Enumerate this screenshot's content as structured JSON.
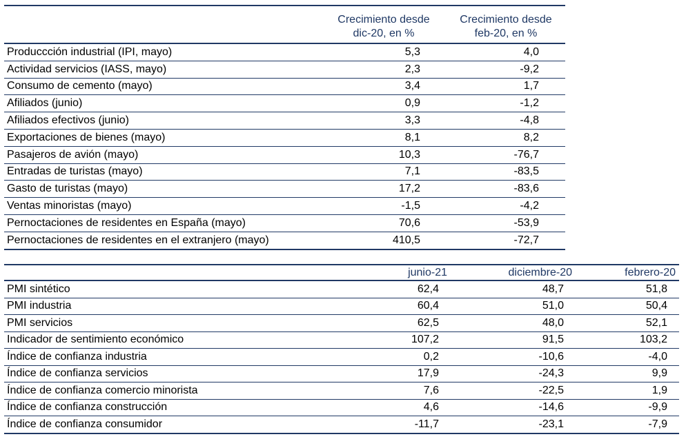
{
  "table1": {
    "headers": [
      "",
      "Crecimiento desde\ndic-20, en %",
      "Crecimiento desde\nfeb-20, en %"
    ],
    "header1_line1": "Crecimiento desde",
    "header1_line2": "dic-20, en %",
    "header2_line1": "Crecimiento desde",
    "header2_line2": "feb-20, en %",
    "rows": [
      {
        "label": "Produccción industrial (IPI, mayo)",
        "dic20": "5,3",
        "feb20": "4,0"
      },
      {
        "label": "Actividad servicios (IASS, mayo)",
        "dic20": "2,3",
        "feb20": "-9,2"
      },
      {
        "label": "Consumo de cemento (mayo)",
        "dic20": "3,4",
        "feb20": "1,7"
      },
      {
        "label": "Afiliados (junio)",
        "dic20": "0,9",
        "feb20": "-1,2"
      },
      {
        "label": "Afiliados efectivos (junio)",
        "dic20": "3,3",
        "feb20": "-4,8"
      },
      {
        "label": "Exportaciones de bienes (mayo)",
        "dic20": "8,1",
        "feb20": "8,2"
      },
      {
        "label": "Pasajeros de avión (mayo)",
        "dic20": "10,3",
        "feb20": "-76,7"
      },
      {
        "label": "Entradas de turistas (mayo)",
        "dic20": "7,1",
        "feb20": "-83,5"
      },
      {
        "label": "Gasto de turistas (mayo)",
        "dic20": "17,2",
        "feb20": "-83,6"
      },
      {
        "label": "Ventas minoristas (mayo)",
        "dic20": "-1,5",
        "feb20": "-4,2"
      },
      {
        "label": "Pernoctaciones de residentes en España (mayo)",
        "dic20": "70,6",
        "feb20": "-53,9"
      },
      {
        "label": "Pernoctaciones de residentes en el extranjero (mayo)",
        "dic20": "410,5",
        "feb20": "-72,7"
      }
    ]
  },
  "table2": {
    "headers": [
      "",
      "junio-21",
      "diciembre-20",
      "febrero-20"
    ],
    "rows": [
      {
        "label": "PMI sintético",
        "jun21": "62,4",
        "dic20": "48,7",
        "feb20": "51,8"
      },
      {
        "label": "PMI industria",
        "jun21": "60,4",
        "dic20": "51,0",
        "feb20": "50,4"
      },
      {
        "label": "PMI servicios",
        "jun21": "62,5",
        "dic20": "48,0",
        "feb20": "52,1"
      },
      {
        "label": "Indicador de sentimiento económico",
        "jun21": "107,2",
        "dic20": "91,5",
        "feb20": "103,2"
      },
      {
        "label": "Índice de confianza industria",
        "jun21": "0,2",
        "dic20": "-10,6",
        "feb20": "-4,0"
      },
      {
        "label": "Índice de confianza servicios",
        "jun21": "17,9",
        "dic20": "-24,3",
        "feb20": "9,9"
      },
      {
        "label": "Índice de confianza comercio minorista",
        "jun21": "7,6",
        "dic20": "-22,5",
        "feb20": "1,9"
      },
      {
        "label": "Índice de confianza construcción",
        "jun21": "4,6",
        "dic20": "-14,6",
        "feb20": "-9,9"
      },
      {
        "label": "Índice de confianza consumidor",
        "jun21": "-11,7",
        "dic20": "-23,1",
        "feb20": "-7,9"
      }
    ]
  },
  "colors": {
    "header_text": "#1f3864",
    "rule": "#1f3864"
  }
}
